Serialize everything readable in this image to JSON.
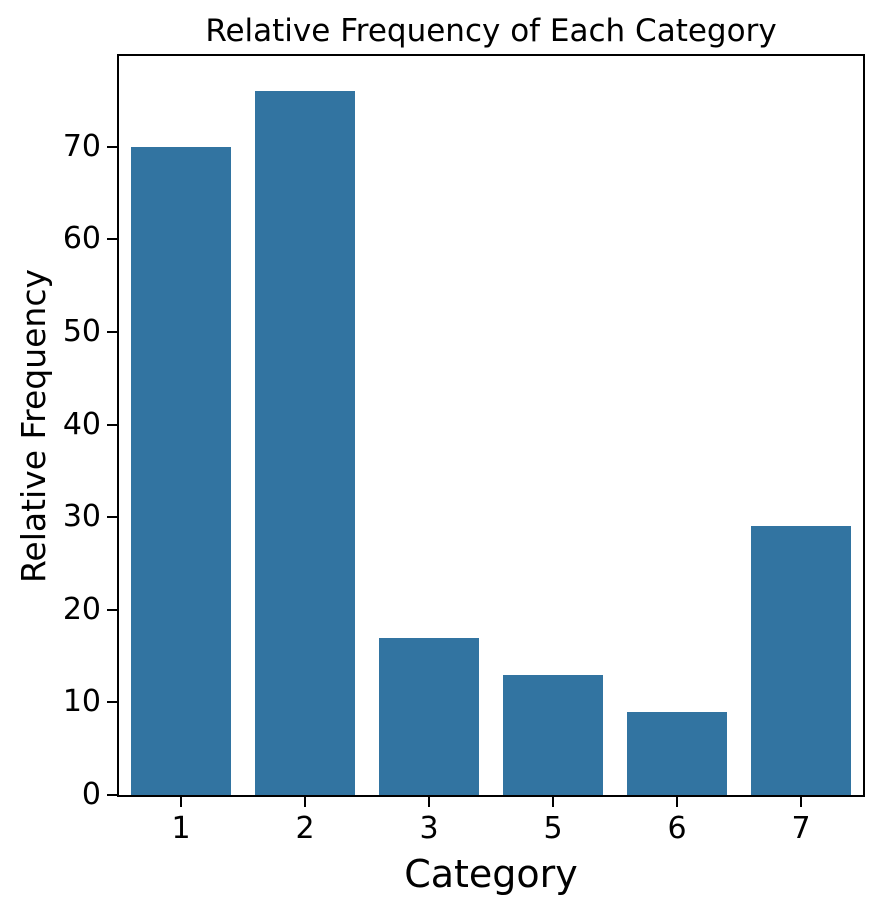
{
  "chart_data": {
    "type": "bar",
    "title": "Relative Frequency of Each Category",
    "xlabel": "Category",
    "ylabel": "Relative Frequency",
    "categories": [
      "1",
      "2",
      "3",
      "5",
      "6",
      "7"
    ],
    "values": [
      70,
      76,
      17,
      13,
      9,
      29
    ],
    "yticks": [
      0,
      10,
      20,
      30,
      40,
      50,
      60,
      70
    ],
    "ylim": [
      0,
      79.8
    ],
    "bar_width_fraction": 0.8,
    "grid": false,
    "bar_color": "#3274a1",
    "axis_color": "#000000",
    "text_color": "#000000",
    "background_color": "#ffffff"
  }
}
